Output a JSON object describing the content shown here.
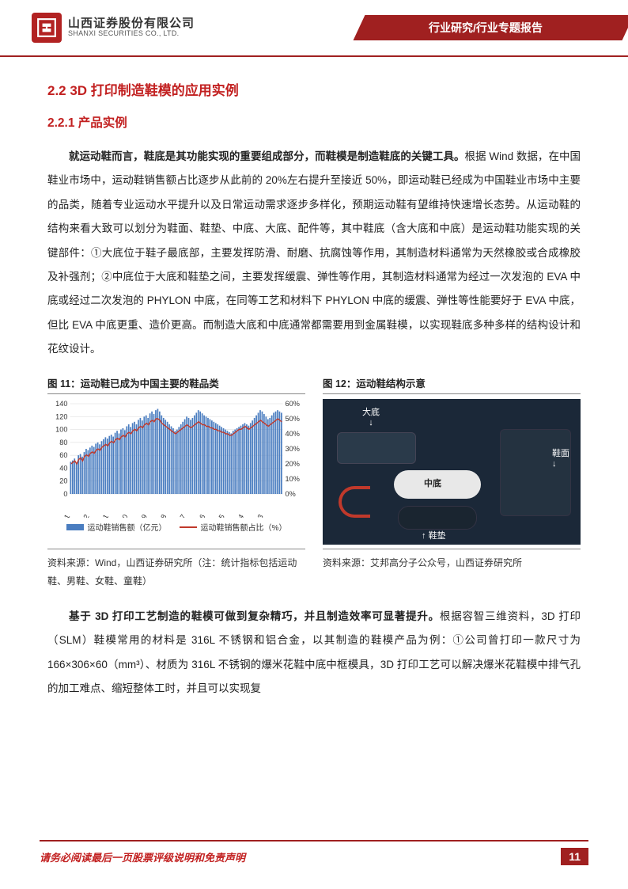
{
  "header": {
    "company_cn": "山西证券股份有限公司",
    "company_en": "SHANXI SECURITIES CO., LTD.",
    "banner": "行业研究/行业专题报告"
  },
  "section": {
    "h2": "2.2  3D 打印制造鞋模的应用实例",
    "h3": "2.2.1  产品实例"
  },
  "para1_bold": "就运动鞋而言，鞋底是其功能实现的重要组成部分，而鞋模是制造鞋底的关键工具。",
  "para1_rest": "根据 Wind 数据，在中国鞋业市场中，运动鞋销售额占比逐步从此前的 20%左右提升至接近 50%，即运动鞋已经成为中国鞋业市场中主要的品类，随着专业运动水平提升以及日常运动需求逐步多样化，预期运动鞋有望维持快速增长态势。从运动鞋的结构来看大致可以划分为鞋面、鞋垫、中底、大底、配件等，其中鞋底（含大底和中底）是运动鞋功能实现的关键部件：①大底位于鞋子最底部，主要发挥防滑、耐磨、抗腐蚀等作用，其制造材料通常为天然橡胶或合成橡胶及补强剂；②中底位于大底和鞋垫之间，主要发挥缓震、弹性等作用，其制造材料通常为经过一次发泡的 EVA 中底或经过二次发泡的 PHYLON 中底，在同等工艺和材料下 PHYLON 中底的缓震、弹性等性能要好于 EVA 中底，但比 EVA 中底更重、造价更高。而制造大底和中底通常都需要用到金属鞋模，以实现鞋底多种多样的结构设计和花纹设计。",
  "fig11": {
    "title": "图 11：运动鞋已成为中国主要的鞋品类",
    "source": "资料来源：Wind，山西证券研究所（注：统计指标包括运动鞋、男鞋、女鞋、童鞋）",
    "chart": {
      "type": "bar+line",
      "left_axis": {
        "min": 0,
        "max": 140,
        "step": 20,
        "ticks": [
          0,
          20,
          40,
          60,
          80,
          100,
          120,
          140
        ]
      },
      "right_axis": {
        "min": 0,
        "max": 0.6,
        "step": 0.1,
        "ticks_pct": [
          "0%",
          "10%",
          "20%",
          "30%",
          "40%",
          "50%",
          "60%"
        ]
      },
      "x_labels": [
        "2015-01",
        "2015-12",
        "2016-11",
        "2017-10",
        "2018-09",
        "2019-08",
        "2020-07",
        "2021-06",
        "2022-05",
        "2023-04",
        "2024-03"
      ],
      "bar_color": "#4a7dc0",
      "line_color": "#c0392b",
      "grid_color": "#d9d9d9",
      "bg_color": "#ffffff",
      "label_fontsize": 9,
      "n_bars": 110,
      "bars_sample": [
        50,
        52,
        55,
        48,
        60,
        62,
        58,
        65,
        70,
        68,
        72,
        75,
        73,
        78,
        80,
        77,
        82,
        85,
        88,
        86,
        90,
        92,
        89,
        95,
        98,
        94,
        100,
        102,
        99,
        105,
        108,
        104,
        110,
        112,
        108,
        115,
        118,
        114,
        120,
        122,
        118,
        125,
        128,
        124,
        130,
        132,
        128,
        122,
        118,
        115,
        112,
        108,
        105,
        102,
        98,
        100,
        104,
        108,
        112,
        116,
        120,
        118,
        115,
        118,
        122,
        126,
        130,
        128,
        125,
        122,
        120,
        118,
        116,
        114,
        112,
        110,
        108,
        106,
        104,
        102,
        100,
        98,
        96,
        94,
        98,
        100,
        102,
        104,
        106,
        108,
        110,
        108,
        106,
        110,
        114,
        118,
        122,
        126,
        130,
        128,
        124,
        120,
        116,
        118,
        122,
        126,
        128,
        130,
        128,
        126
      ],
      "line_sample_pct": [
        0.2,
        0.21,
        0.22,
        0.2,
        0.23,
        0.24,
        0.22,
        0.25,
        0.26,
        0.25,
        0.27,
        0.28,
        0.27,
        0.29,
        0.3,
        0.29,
        0.31,
        0.32,
        0.33,
        0.32,
        0.34,
        0.35,
        0.34,
        0.36,
        0.37,
        0.36,
        0.38,
        0.39,
        0.38,
        0.4,
        0.41,
        0.4,
        0.42,
        0.43,
        0.42,
        0.44,
        0.45,
        0.44,
        0.46,
        0.47,
        0.46,
        0.48,
        0.49,
        0.48,
        0.5,
        0.5,
        0.49,
        0.47,
        0.46,
        0.45,
        0.44,
        0.43,
        0.42,
        0.41,
        0.4,
        0.41,
        0.42,
        0.43,
        0.44,
        0.45,
        0.46,
        0.45,
        0.44,
        0.45,
        0.46,
        0.47,
        0.48,
        0.47,
        0.46,
        0.46,
        0.45,
        0.45,
        0.44,
        0.44,
        0.43,
        0.43,
        0.42,
        0.42,
        0.41,
        0.41,
        0.4,
        0.4,
        0.39,
        0.39,
        0.4,
        0.41,
        0.42,
        0.43,
        0.43,
        0.44,
        0.45,
        0.44,
        0.43,
        0.44,
        0.45,
        0.46,
        0.47,
        0.48,
        0.49,
        0.48,
        0.47,
        0.46,
        0.45,
        0.46,
        0.47,
        0.48,
        0.49,
        0.5,
        0.49,
        0.48
      ],
      "legend_bar": "运动鞋销售额（亿元）",
      "legend_line": "运动鞋销售额占比（%）"
    }
  },
  "fig12": {
    "title": "图 12：运动鞋结构示意",
    "source": "资料来源：艾邦高分子公众号，山西证券研究所",
    "bg_color": "#1b2838",
    "labels": {
      "outsole": "大底",
      "upper": "鞋面",
      "midsole": "中底",
      "insole": "鞋垫"
    }
  },
  "para2_bold": "基于 3D 打印工艺制造的鞋模可做到复杂精巧，并且制造效率可显著提升。",
  "para2_rest": "根据容智三维资料，3D 打印（SLM）鞋模常用的材料是 316L 不锈钢和铝合金，以其制造的鞋模产品为例：①公司曾打印一款尺寸为 166×306×60（mm³）、材质为 316L 不锈钢的爆米花鞋中底中框模具，3D 打印工艺可以解决爆米花鞋模中排气孔的加工难点、缩短整体工时，并且可以实现复",
  "footer": {
    "text": "请务必阅读最后一页股票评级说明和免责声明",
    "page": "11"
  }
}
